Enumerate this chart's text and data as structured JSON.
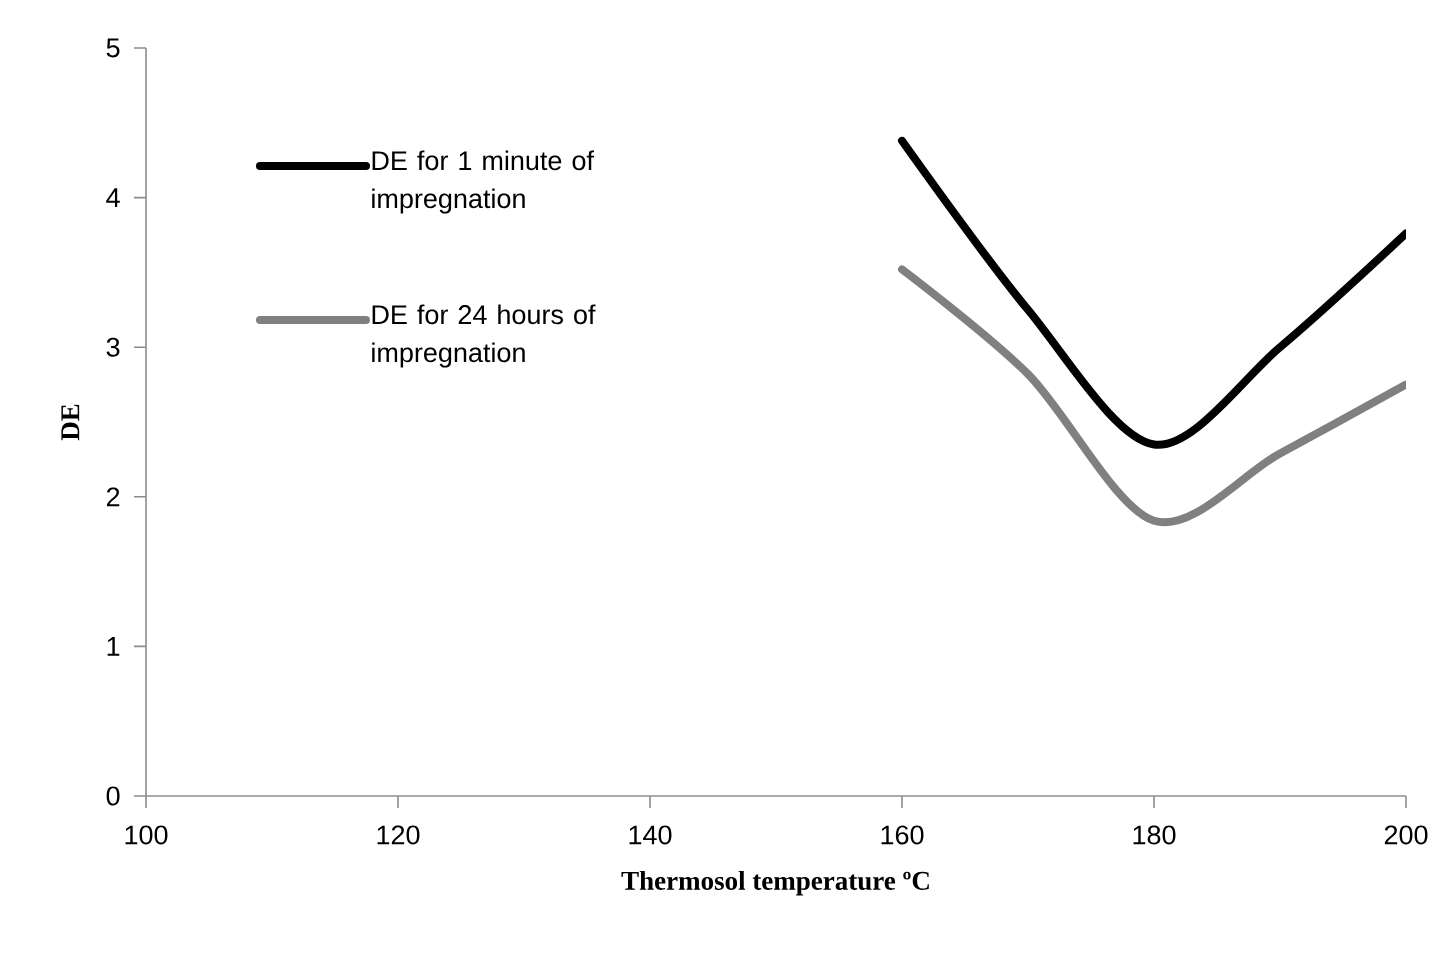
{
  "chart_data": {
    "type": "line",
    "xlabel": "Thermosol temperature ºC",
    "ylabel": "DE",
    "xlim": [
      100,
      200
    ],
    "ylim": [
      0,
      5
    ],
    "xticks": [
      100,
      120,
      140,
      160,
      180,
      200
    ],
    "yticks": [
      0,
      1,
      2,
      3,
      4,
      5
    ],
    "grid": false,
    "legend": "top left",
    "marker": "none",
    "line_style": "solid",
    "series": [
      {
        "name": "DE for 1 minute of impregnation",
        "color": "#000000",
        "x": [
          160,
          170,
          180,
          190,
          200
        ],
        "values": [
          4.38,
          3.25,
          2.35,
          3.0,
          3.76
        ]
      },
      {
        "name": "DE for 24 hours of impregnation",
        "color": "#808080",
        "x": [
          160,
          170,
          180,
          190,
          200
        ],
        "values": [
          3.52,
          2.82,
          1.84,
          2.29,
          2.75
        ]
      }
    ]
  }
}
